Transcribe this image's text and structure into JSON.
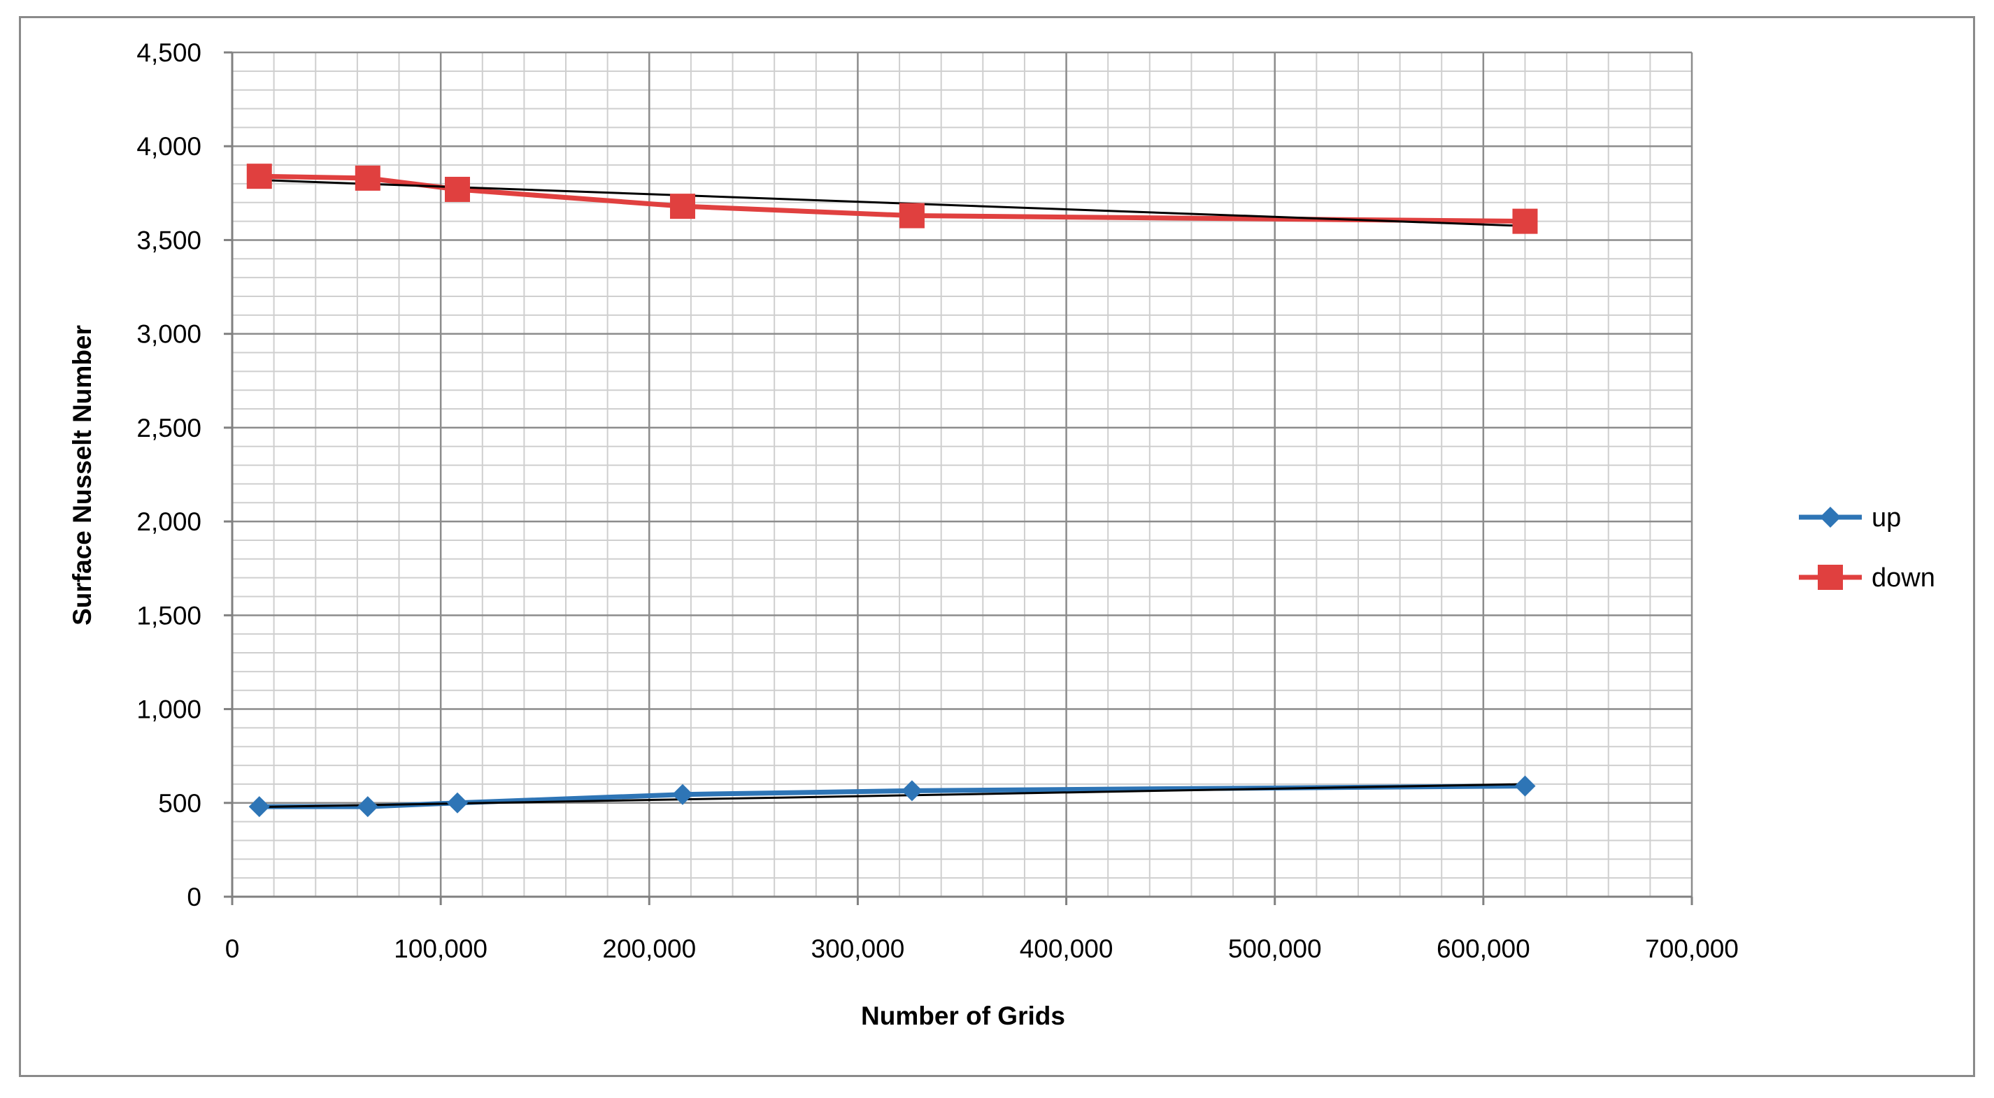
{
  "chart_data": {
    "type": "line",
    "title": "",
    "xlabel": "Number of Grids",
    "ylabel": "Surface Nusselt Number",
    "xlim": [
      0,
      700000
    ],
    "ylim": [
      0,
      4500
    ],
    "x_major_ticks": [
      0,
      100000,
      200000,
      300000,
      400000,
      500000,
      600000,
      700000
    ],
    "x_tick_labels": [
      "0",
      "100,000",
      "200,000",
      "300,000",
      "400,000",
      "500,000",
      "600,000",
      "700,000"
    ],
    "y_major_ticks": [
      0,
      500,
      1000,
      1500,
      2000,
      2500,
      3000,
      3500,
      4000,
      4500
    ],
    "y_tick_labels": [
      "0",
      "500",
      "1,000",
      "1,500",
      "2,000",
      "2,500",
      "3,000",
      "3,500",
      "4,000",
      "4,500"
    ],
    "x_minor_step": 20000,
    "y_minor_step": 100,
    "grid": true,
    "legend_position": "right",
    "series": [
      {
        "name": "up",
        "color": "#2e75b6",
        "marker": "diamond",
        "x": [
          13000,
          65000,
          108000,
          216000,
          326000,
          620000
        ],
        "values": [
          480,
          480,
          500,
          545,
          565,
          590
        ]
      },
      {
        "name": "down",
        "color": "#e0403f",
        "marker": "square",
        "x": [
          13000,
          65000,
          108000,
          216000,
          326000,
          620000
        ],
        "values": [
          3840,
          3830,
          3770,
          3680,
          3630,
          3600
        ]
      }
    ],
    "trendlines": [
      {
        "series": "up",
        "color": "#000000",
        "x": [
          13000,
          620000
        ],
        "values": [
          478,
          600
        ]
      },
      {
        "series": "down",
        "color": "#000000",
        "x": [
          13000,
          620000
        ],
        "values": [
          3820,
          3575
        ]
      }
    ]
  }
}
